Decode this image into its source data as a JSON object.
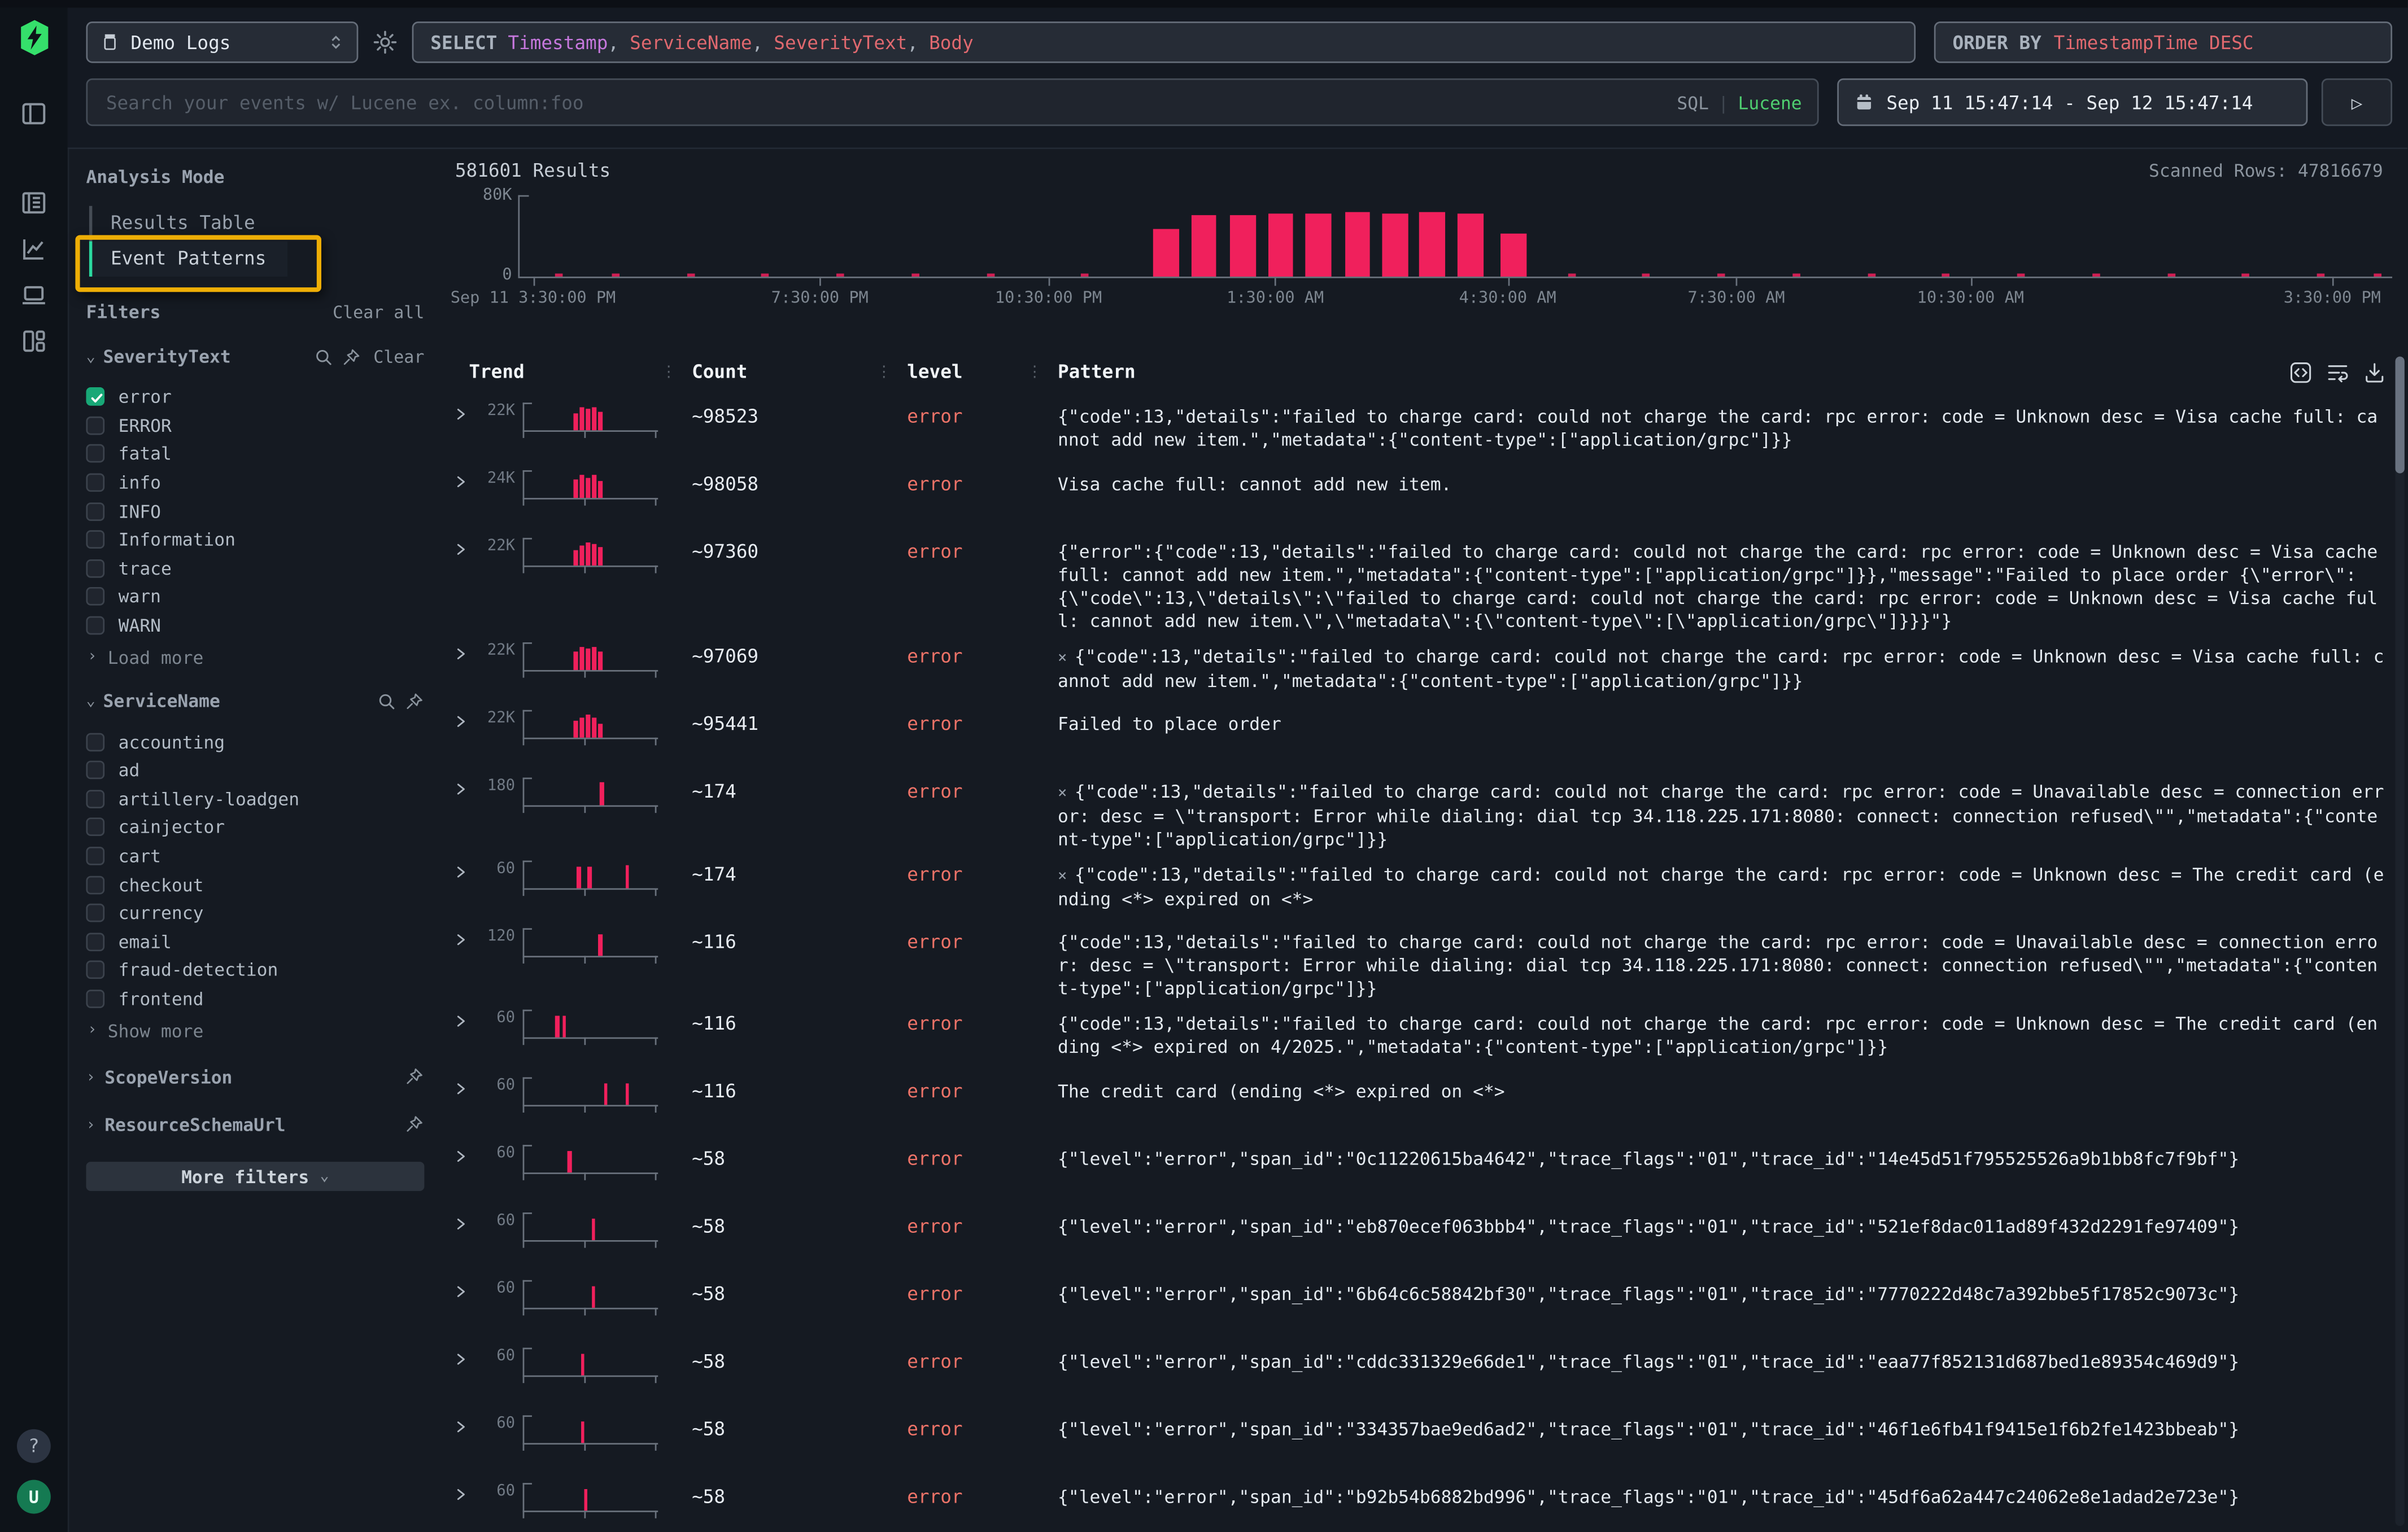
{
  "colors": {
    "accent_pink": "#f0205c",
    "error_text": "#ed7368",
    "logo_green": "#35e06b",
    "checkbox_green": "#18a877",
    "active_mode_green": "#2bd99f",
    "annotation_yellow": "#eeae06",
    "field_purple": "#c678dd",
    "field_red": "#e0696f",
    "lucene_green": "#4fcf70"
  },
  "icons": {
    "run": "▷",
    "chevron_right": "›",
    "chevron_down": "⌄",
    "column_handle": "⋮",
    "pattern_x": "×",
    "pipe": "|",
    "help": "?",
    "avatar_initial": "U"
  },
  "topbar": {
    "source": "Demo Logs",
    "select_keyword": "SELECT",
    "select_fields": [
      {
        "text": "Timestamp",
        "color": "#c678dd"
      },
      {
        "text": "ServiceName",
        "color": "#e0696f"
      },
      {
        "text": "SeverityText",
        "color": "#e0696f"
      },
      {
        "text": "Body",
        "color": "#e0696f"
      }
    ],
    "orderby_keyword": "ORDER BY",
    "orderby_value": "TimestampTime DESC",
    "search_placeholder": "Search your events w/ Lucene ex. column:foo",
    "mode_sql": "SQL",
    "mode_lucene": "Lucene",
    "time_range": "Sep 11 15:47:14 - Sep 12 15:47:14"
  },
  "sidebar": {
    "analysis_mode_title": "Analysis Mode",
    "modes": [
      {
        "label": "Results Table",
        "active": false,
        "annotated": false
      },
      {
        "label": "Event Patterns",
        "active": true,
        "annotated": true
      }
    ],
    "filters_title": "Filters",
    "clear_all_label": "Clear all",
    "severity": {
      "name": "SeverityText",
      "clear_label": "Clear",
      "options": [
        {
          "label": "error",
          "checked": true
        },
        {
          "label": "ERROR",
          "checked": false
        },
        {
          "label": "fatal",
          "checked": false
        },
        {
          "label": "info",
          "checked": false
        },
        {
          "label": "INFO",
          "checked": false
        },
        {
          "label": "Information",
          "checked": false
        },
        {
          "label": "trace",
          "checked": false
        },
        {
          "label": "warn",
          "checked": false
        },
        {
          "label": "WARN",
          "checked": false
        }
      ],
      "more_label": "Load more"
    },
    "service": {
      "name": "ServiceName",
      "options": [
        {
          "label": "accounting",
          "checked": false
        },
        {
          "label": "ad",
          "checked": false
        },
        {
          "label": "artillery-loadgen",
          "checked": false
        },
        {
          "label": "cainjector",
          "checked": false
        },
        {
          "label": "cart",
          "checked": false
        },
        {
          "label": "checkout",
          "checked": false
        },
        {
          "label": "currency",
          "checked": false
        },
        {
          "label": "email",
          "checked": false
        },
        {
          "label": "fraud-detection",
          "checked": false
        },
        {
          "label": "frontend",
          "checked": false
        }
      ],
      "more_label": "Show more"
    },
    "collapsed_groups": [
      {
        "name": "ScopeVersion"
      },
      {
        "name": "ResourceSchemaUrl"
      }
    ],
    "more_filters_label": "More filters"
  },
  "results": {
    "results_label": "581601 Results",
    "scanned_label": "Scanned Rows: 47816679"
  },
  "chart_data": {
    "type": "bar",
    "title": "581601 Results",
    "xlabel": "",
    "ylabel": "",
    "y_ticks": [
      "80K",
      "0"
    ],
    "ylim": [
      0,
      80000
    ],
    "grid": false,
    "legend": "none",
    "bar_color": "#f0205c",
    "bar_width": 0.0138,
    "x_ticks": [
      {
        "label": "Sep 11 3:30:00 PM",
        "pos": 0.008
      },
      {
        "label": "7:30:00 PM",
        "pos": 0.161
      },
      {
        "label": "10:30:00 PM",
        "pos": 0.283
      },
      {
        "label": "1:30:00 AM",
        "pos": 0.404
      },
      {
        "label": "4:30:00 AM",
        "pos": 0.528
      },
      {
        "label": "7:30:00 AM",
        "pos": 0.65
      },
      {
        "label": "10:30:00 AM",
        "pos": 0.775
      },
      {
        "label": "3:30:00 PM",
        "pos": 0.968
      }
    ],
    "bars": [
      {
        "pos": 0.339,
        "value": 47000
      },
      {
        "pos": 0.359,
        "value": 61000
      },
      {
        "pos": 0.38,
        "value": 60000
      },
      {
        "pos": 0.4,
        "value": 62000
      },
      {
        "pos": 0.42,
        "value": 62000
      },
      {
        "pos": 0.441,
        "value": 63500
      },
      {
        "pos": 0.461,
        "value": 62000
      },
      {
        "pos": 0.481,
        "value": 63500
      },
      {
        "pos": 0.501,
        "value": 62500
      },
      {
        "pos": 0.524,
        "value": 42000
      }
    ],
    "noise_positions": [
      0.02,
      0.05,
      0.09,
      0.13,
      0.17,
      0.21,
      0.25,
      0.3,
      0.56,
      0.6,
      0.64,
      0.68,
      0.72,
      0.76,
      0.8,
      0.84,
      0.88,
      0.92,
      0.96,
      0.99
    ]
  },
  "table": {
    "columns": [
      "Trend",
      "Count",
      "level",
      "Pattern"
    ],
    "rows": [
      {
        "ymax": "22K",
        "count": "~98523",
        "level": "error",
        "has_x": false,
        "spark": [
          {
            "x": 0.38,
            "h": 0.75
          },
          {
            "x": 0.425,
            "h": 1
          },
          {
            "x": 0.47,
            "h": 0.92
          },
          {
            "x": 0.515,
            "h": 1
          },
          {
            "x": 0.56,
            "h": 0.8
          }
        ],
        "pattern": "{\"code\":13,\"details\":\"failed to charge card: could not charge the card: rpc error: code = Unknown desc = Visa cache full: cannot add new item.\",\"metadata\":{\"content-type\":[\"application/grpc\"]}}"
      },
      {
        "ymax": "24K",
        "count": "~98058",
        "level": "error",
        "has_x": false,
        "spark": [
          {
            "x": 0.38,
            "h": 0.8
          },
          {
            "x": 0.425,
            "h": 1
          },
          {
            "x": 0.47,
            "h": 0.9
          },
          {
            "x": 0.515,
            "h": 1
          },
          {
            "x": 0.56,
            "h": 0.72
          }
        ],
        "pattern": "Visa cache full: cannot add new item."
      },
      {
        "ymax": "22K",
        "count": "~97360",
        "level": "error",
        "has_x": false,
        "spark": [
          {
            "x": 0.38,
            "h": 0.7
          },
          {
            "x": 0.425,
            "h": 0.88
          },
          {
            "x": 0.47,
            "h": 1
          },
          {
            "x": 0.515,
            "h": 0.93
          },
          {
            "x": 0.56,
            "h": 0.78
          }
        ],
        "pattern": "{\"error\":{\"code\":13,\"details\":\"failed to charge card: could not charge the card: rpc error: code = Unknown desc = Visa cache full: cannot add new item.\",\"metadata\":{\"content-type\":[\"application/grpc\"]}},\"message\":\"Failed to place order {\\\"error\\\":{\\\"code\\\":13,\\\"details\\\":\\\"failed to charge card: could not charge the card: rpc error: code = Unknown desc = Visa cache full: cannot add new item.\\\",\\\"metadata\\\":{\\\"content-type\\\":[\\\"application/grpc\\\"]}}}\"}"
      },
      {
        "ymax": "22K",
        "count": "~97069",
        "level": "error",
        "has_x": true,
        "spark": [
          {
            "x": 0.38,
            "h": 0.78
          },
          {
            "x": 0.425,
            "h": 1
          },
          {
            "x": 0.47,
            "h": 0.95
          },
          {
            "x": 0.515,
            "h": 1
          },
          {
            "x": 0.56,
            "h": 0.8
          }
        ],
        "pattern": "{\"code\":13,\"details\":\"failed to charge card: could not charge the card: rpc error: code = Unknown desc = Visa cache full: cannot add new item.\",\"metadata\":{\"content-type\":[\"application/grpc\"]}}"
      },
      {
        "ymax": "22K",
        "count": "~95441",
        "level": "error",
        "has_x": false,
        "spark": [
          {
            "x": 0.38,
            "h": 0.72
          },
          {
            "x": 0.425,
            "h": 0.9
          },
          {
            "x": 0.47,
            "h": 1
          },
          {
            "x": 0.515,
            "h": 0.85
          },
          {
            "x": 0.56,
            "h": 0.6
          }
        ],
        "pattern": "Failed to place order"
      },
      {
        "ymax": "180",
        "count": "~174",
        "level": "error",
        "has_x": true,
        "spark": [
          {
            "x": 0.57,
            "h": 0.97
          }
        ],
        "pattern": "{\"code\":13,\"details\":\"failed to charge card: could not charge the card: rpc error: code = Unavailable desc = connection error: desc = \\\"transport: Error while dialing: dial tcp 34.118.225.171:8080: connect: connection refused\\\"\",\"metadata\":{\"content-type\":[\"application/grpc\"]}}"
      },
      {
        "ymax": "60",
        "count": "~174",
        "level": "error",
        "has_x": true,
        "spark": [
          {
            "x": 0.4,
            "h": 0.95
          },
          {
            "x": 0.48,
            "h": 0.95
          },
          {
            "x": 0.76,
            "h": 0.97
          }
        ],
        "pattern": "{\"code\":13,\"details\":\"failed to charge card: could not charge the card: rpc error: code = Unknown desc = The credit card (ending <*> expired on <*>"
      },
      {
        "ymax": "120",
        "count": "~116",
        "level": "error",
        "has_x": false,
        "spark": [
          {
            "x": 0.56,
            "h": 0.95
          }
        ],
        "pattern": "{\"code\":13,\"details\":\"failed to charge card: could not charge the card: rpc error: code = Unavailable desc = connection error: desc = \\\"transport: Error while dialing: dial tcp 34.118.225.171:8080: connect: connection refused\\\"\",\"metadata\":{\"content-type\":[\"application/grpc\"]}}"
      },
      {
        "ymax": "60",
        "count": "~116",
        "level": "error",
        "has_x": false,
        "spark": [
          {
            "x": 0.24,
            "h": 0.95
          },
          {
            "x": 0.29,
            "h": 0.95
          }
        ],
        "pattern": "{\"code\":13,\"details\":\"failed to charge card: could not charge the card: rpc error: code = Unknown desc = The credit card (ending <*> expired on 4/2025.\",\"metadata\":{\"content-type\":[\"application/grpc\"]}}"
      },
      {
        "ymax": "60",
        "count": "~116",
        "level": "error",
        "has_x": false,
        "spark": [
          {
            "x": 0.6,
            "h": 0.95
          },
          {
            "x": 0.76,
            "h": 0.95
          }
        ],
        "pattern": "The credit card (ending <*> expired on <*>"
      },
      {
        "ymax": "60",
        "count": "~58",
        "level": "error",
        "has_x": false,
        "spark": [
          {
            "x": 0.33,
            "h": 0.95
          }
        ],
        "pattern": "{\"level\":\"error\",\"span_id\":\"0c11220615ba4642\",\"trace_flags\":\"01\",\"trace_id\":\"14e45d51f795525526a9b1bb8fc7f9bf\"}"
      },
      {
        "ymax": "60",
        "count": "~58",
        "level": "error",
        "has_x": false,
        "spark": [
          {
            "x": 0.51,
            "h": 0.95
          }
        ],
        "pattern": "{\"level\":\"error\",\"span_id\":\"eb870ecef063bbb4\",\"trace_flags\":\"01\",\"trace_id\":\"521ef8dac011ad89f432d2291fe97409\"}"
      },
      {
        "ymax": "60",
        "count": "~58",
        "level": "error",
        "has_x": false,
        "spark": [
          {
            "x": 0.51,
            "h": 0.95
          }
        ],
        "pattern": "{\"level\":\"error\",\"span_id\":\"6b64c6c58842bf30\",\"trace_flags\":\"01\",\"trace_id\":\"7770222d48c7a392bbe5f17852c9073c\"}"
      },
      {
        "ymax": "60",
        "count": "~58",
        "level": "error",
        "has_x": false,
        "spark": [
          {
            "x": 0.43,
            "h": 0.95
          }
        ],
        "pattern": "{\"level\":\"error\",\"span_id\":\"cddc331329e66de1\",\"trace_flags\":\"01\",\"trace_id\":\"eaa77f852131d687bed1e89354c469d9\"}"
      },
      {
        "ymax": "60",
        "count": "~58",
        "level": "error",
        "has_x": false,
        "spark": [
          {
            "x": 0.43,
            "h": 0.95
          }
        ],
        "pattern": "{\"level\":\"error\",\"span_id\":\"334357bae9ed6ad2\",\"trace_flags\":\"01\",\"trace_id\":\"46f1e6fb41f9415e1f6b2fe1423bbeab\"}"
      },
      {
        "ymax": "60",
        "count": "~58",
        "level": "error",
        "has_x": false,
        "spark": [
          {
            "x": 0.45,
            "h": 0.95
          }
        ],
        "pattern": "{\"level\":\"error\",\"span_id\":\"b92b54b6882bd996\",\"trace_flags\":\"01\",\"trace_id\":\"45df6a62a447c24062e8e1adad2e723e\"}"
      }
    ]
  }
}
